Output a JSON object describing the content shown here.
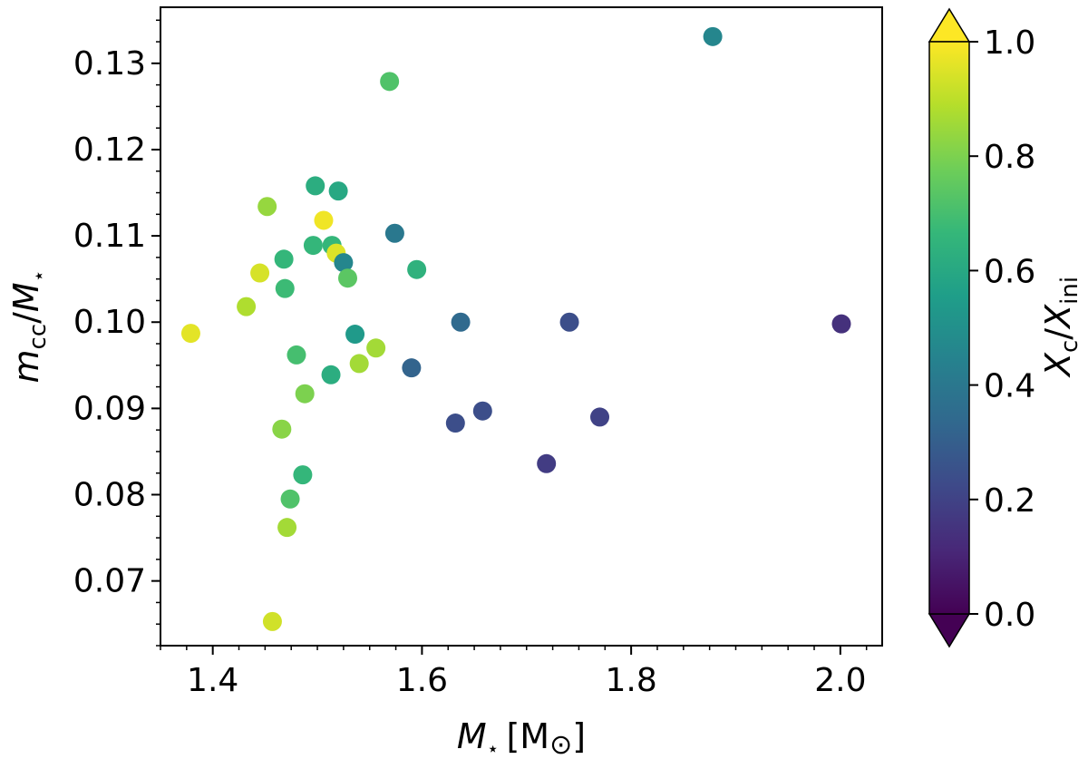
{
  "chart_data": {
    "type": "scatter",
    "title": "",
    "xlabel": {
      "main": "M",
      "sub": "⋆",
      "unit": "[M",
      "unit_sym": "⊙",
      "unit_close": "]"
    },
    "ylabel": {
      "m": "m",
      "m_sub": "cc",
      "slash": "/",
      "M": "M",
      "M_sub": "⋆"
    },
    "colorbar_label": {
      "x": "X",
      "x_sub": "c",
      "slash": "/",
      "X": "X",
      "X_sub": "ini"
    },
    "xlim": [
      1.35,
      2.04
    ],
    "ylim": [
      0.0625,
      0.1365
    ],
    "xticks": [
      1.4,
      1.6,
      1.8,
      2.0
    ],
    "xtick_labels": [
      "1.4",
      "1.6",
      "1.8",
      "2.0"
    ],
    "yticks": [
      0.07,
      0.08,
      0.09,
      0.1,
      0.11,
      0.12,
      0.13
    ],
    "ytick_labels": [
      "0.07",
      "0.08",
      "0.09",
      "0.10",
      "0.11",
      "0.12",
      "0.13"
    ],
    "color_range": [
      0.0,
      1.0
    ],
    "colorbar_ticks": [
      0.0,
      0.2,
      0.4,
      0.6,
      0.8,
      1.0
    ],
    "colorbar_tick_labels": [
      "0.0",
      "0.2",
      "0.4",
      "0.6",
      "0.8",
      "1.0"
    ],
    "colormap": "viridis",
    "colormap_stops": [
      "#440154",
      "#482878",
      "#3e4989",
      "#31688e",
      "#26828e",
      "#1f9e89",
      "#35b779",
      "#6ece58",
      "#b5de2b",
      "#fde725"
    ],
    "grid": false,
    "points": [
      {
        "x": 1.379,
        "y": 0.0987,
        "c": 0.96
      },
      {
        "x": 1.432,
        "y": 0.1018,
        "c": 0.88
      },
      {
        "x": 1.445,
        "y": 0.1057,
        "c": 0.94
      },
      {
        "x": 1.452,
        "y": 0.1134,
        "c": 0.84
      },
      {
        "x": 1.457,
        "y": 0.0653,
        "c": 0.93
      },
      {
        "x": 1.466,
        "y": 0.0876,
        "c": 0.82
      },
      {
        "x": 1.468,
        "y": 0.1073,
        "c": 0.66
      },
      {
        "x": 1.469,
        "y": 0.1039,
        "c": 0.68
      },
      {
        "x": 1.471,
        "y": 0.0762,
        "c": 0.86
      },
      {
        "x": 1.474,
        "y": 0.0795,
        "c": 0.72
      },
      {
        "x": 1.48,
        "y": 0.0962,
        "c": 0.7
      },
      {
        "x": 1.486,
        "y": 0.0823,
        "c": 0.66
      },
      {
        "x": 1.488,
        "y": 0.0917,
        "c": 0.8
      },
      {
        "x": 1.496,
        "y": 0.1089,
        "c": 0.66
      },
      {
        "x": 1.498,
        "y": 0.1158,
        "c": 0.62
      },
      {
        "x": 1.506,
        "y": 0.1118,
        "c": 0.98
      },
      {
        "x": 1.513,
        "y": 0.0939,
        "c": 0.62
      },
      {
        "x": 1.514,
        "y": 0.1089,
        "c": 0.66
      },
      {
        "x": 1.518,
        "y": 0.108,
        "c": 0.95
      },
      {
        "x": 1.52,
        "y": 0.1152,
        "c": 0.6
      },
      {
        "x": 1.525,
        "y": 0.1069,
        "c": 0.46
      },
      {
        "x": 1.529,
        "y": 0.1051,
        "c": 0.74
      },
      {
        "x": 1.536,
        "y": 0.0986,
        "c": 0.54
      },
      {
        "x": 1.54,
        "y": 0.0952,
        "c": 0.86
      },
      {
        "x": 1.556,
        "y": 0.097,
        "c": 0.86
      },
      {
        "x": 1.569,
        "y": 0.1279,
        "c": 0.72
      },
      {
        "x": 1.574,
        "y": 0.1103,
        "c": 0.4
      },
      {
        "x": 1.59,
        "y": 0.0947,
        "c": 0.32
      },
      {
        "x": 1.595,
        "y": 0.1061,
        "c": 0.64
      },
      {
        "x": 1.632,
        "y": 0.0883,
        "c": 0.24
      },
      {
        "x": 1.637,
        "y": 0.1,
        "c": 0.34
      },
      {
        "x": 1.658,
        "y": 0.0897,
        "c": 0.24
      },
      {
        "x": 1.719,
        "y": 0.0836,
        "c": 0.18
      },
      {
        "x": 1.741,
        "y": 0.1,
        "c": 0.24
      },
      {
        "x": 1.77,
        "y": 0.089,
        "c": 0.2
      },
      {
        "x": 1.878,
        "y": 0.1331,
        "c": 0.46
      },
      {
        "x": 2.001,
        "y": 0.0998,
        "c": 0.14
      }
    ]
  }
}
